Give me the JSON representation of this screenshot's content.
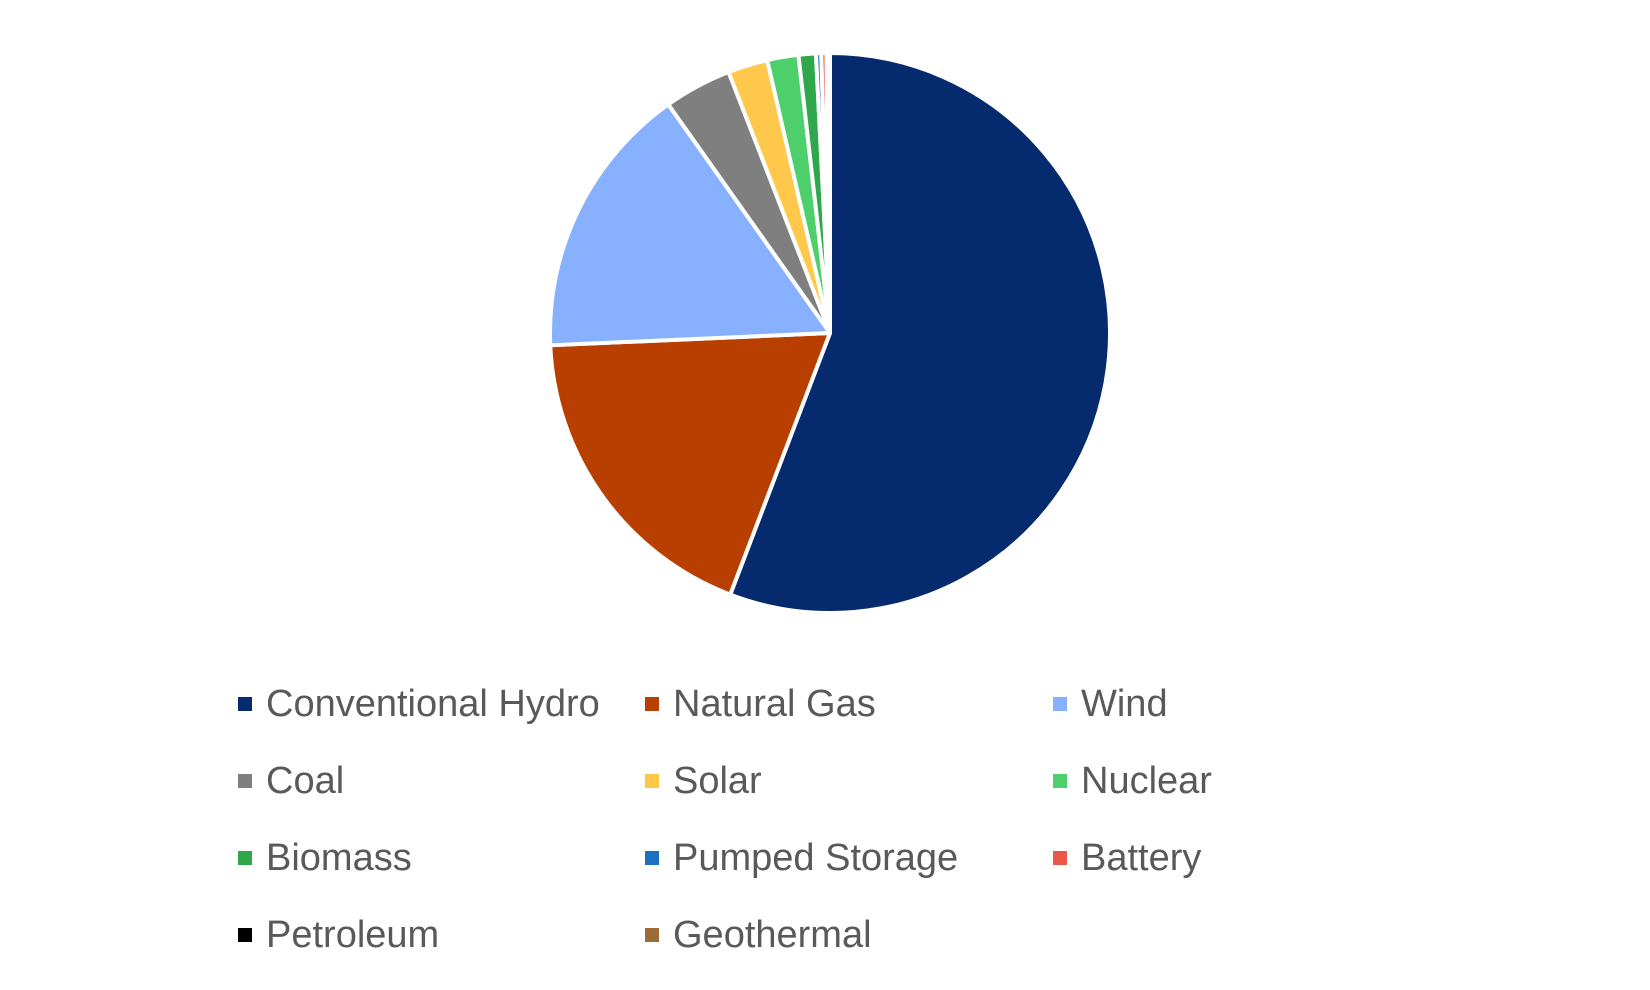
{
  "chart_data": {
    "type": "pie",
    "categories": [
      "Conventional Hydro",
      "Natural Gas",
      "Wind",
      "Coal",
      "Solar",
      "Nuclear",
      "Biomass",
      "Pumped Storage",
      "Battery",
      "Petroleum",
      "Geothermal"
    ],
    "values": [
      55.8,
      18.5,
      15.9,
      3.9,
      2.3,
      1.8,
      1.0,
      0.3,
      0.3,
      0.1,
      0.1
    ],
    "colors": [
      "#052a6e",
      "#b83f00",
      "#87b1ff",
      "#7f7f7f",
      "#ffc84a",
      "#4dd06c",
      "#2ea84a",
      "#1f6fbf",
      "#e8574a",
      "#000000",
      "#9a6b35"
    ],
    "legend": "bottom"
  }
}
